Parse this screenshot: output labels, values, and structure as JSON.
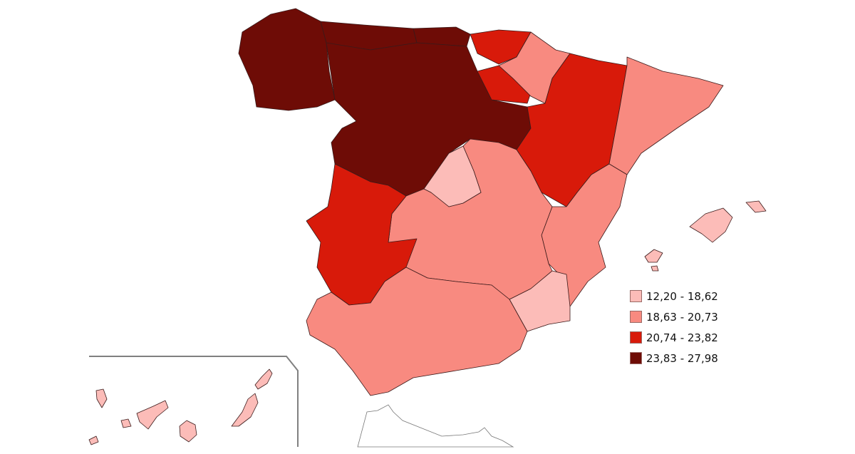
{
  "legend": {
    "items": [
      {
        "label": "12,20 - 18,62",
        "color": "#fcbcb8"
      },
      {
        "label": "18,63 - 20,73",
        "color": "#f88a80"
      },
      {
        "label": "20,74 - 23,82",
        "color": "#d81a0a"
      },
      {
        "label": "23,83 - 27,98",
        "color": "#6e0c06"
      }
    ]
  },
  "colors": {
    "inset_border": "#808080",
    "no_data": "#ffffff"
  }
}
